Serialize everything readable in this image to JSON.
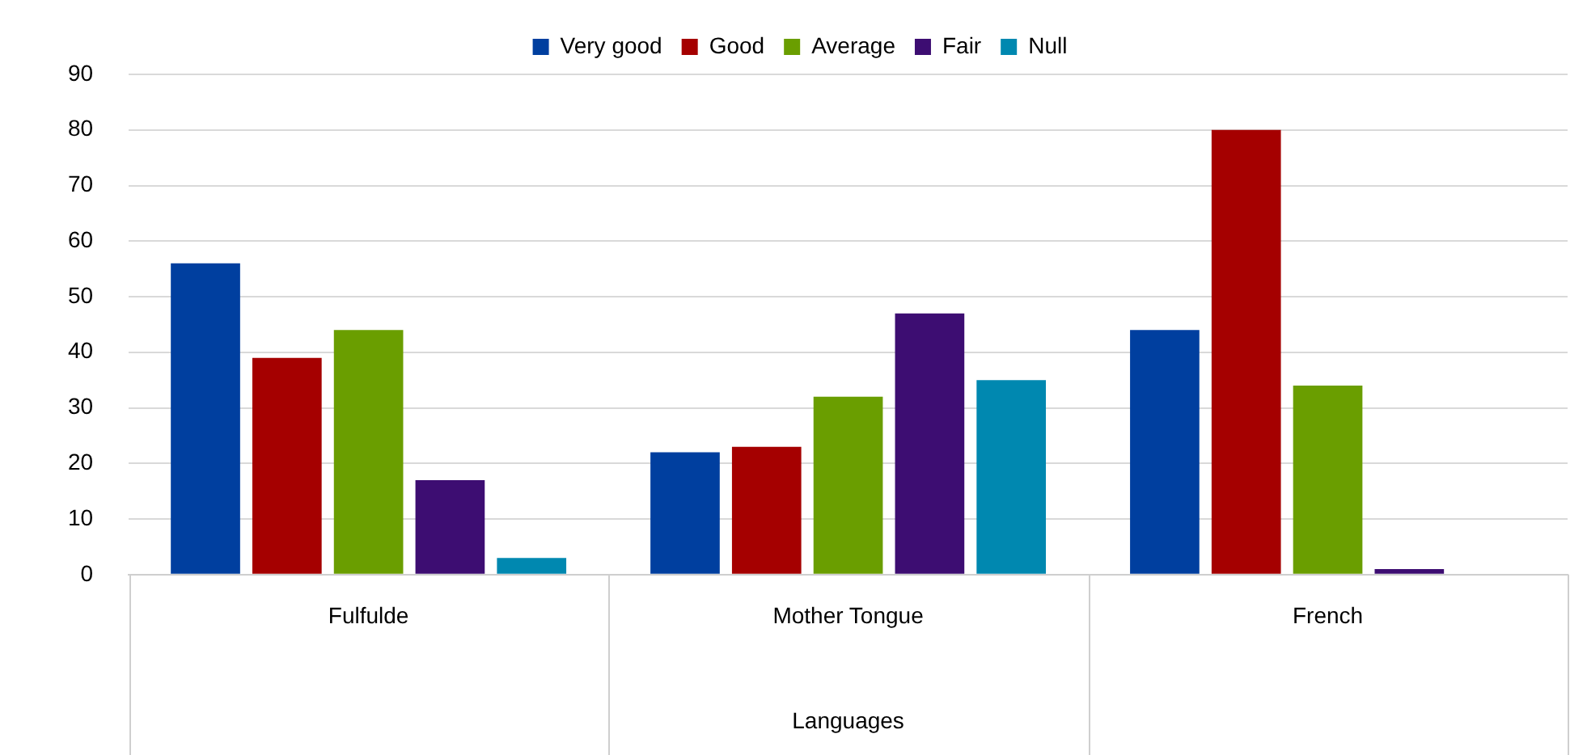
{
  "chart_data": {
    "type": "bar",
    "xlabel": "Languages",
    "categories": [
      "Fulfulde",
      "Mother Tongue",
      "French"
    ],
    "series": [
      {
        "name": "Very good",
        "color": "#003f9f",
        "values": [
          56,
          22,
          44
        ]
      },
      {
        "name": "Good",
        "color": "#a50000",
        "values": [
          39,
          23,
          80
        ]
      },
      {
        "name": "Average",
        "color": "#6a9e00",
        "values": [
          44,
          32,
          34
        ]
      },
      {
        "name": "Fair",
        "color": "#3d0d72",
        "values": [
          17,
          47,
          1
        ]
      },
      {
        "name": "Null",
        "color": "#0088b0",
        "values": [
          3,
          35,
          0
        ]
      }
    ],
    "ylim": [
      0,
      90
    ],
    "yticks": [
      0,
      10,
      20,
      30,
      40,
      50,
      60,
      70,
      80,
      90
    ],
    "grid": "y",
    "legend": "top"
  }
}
